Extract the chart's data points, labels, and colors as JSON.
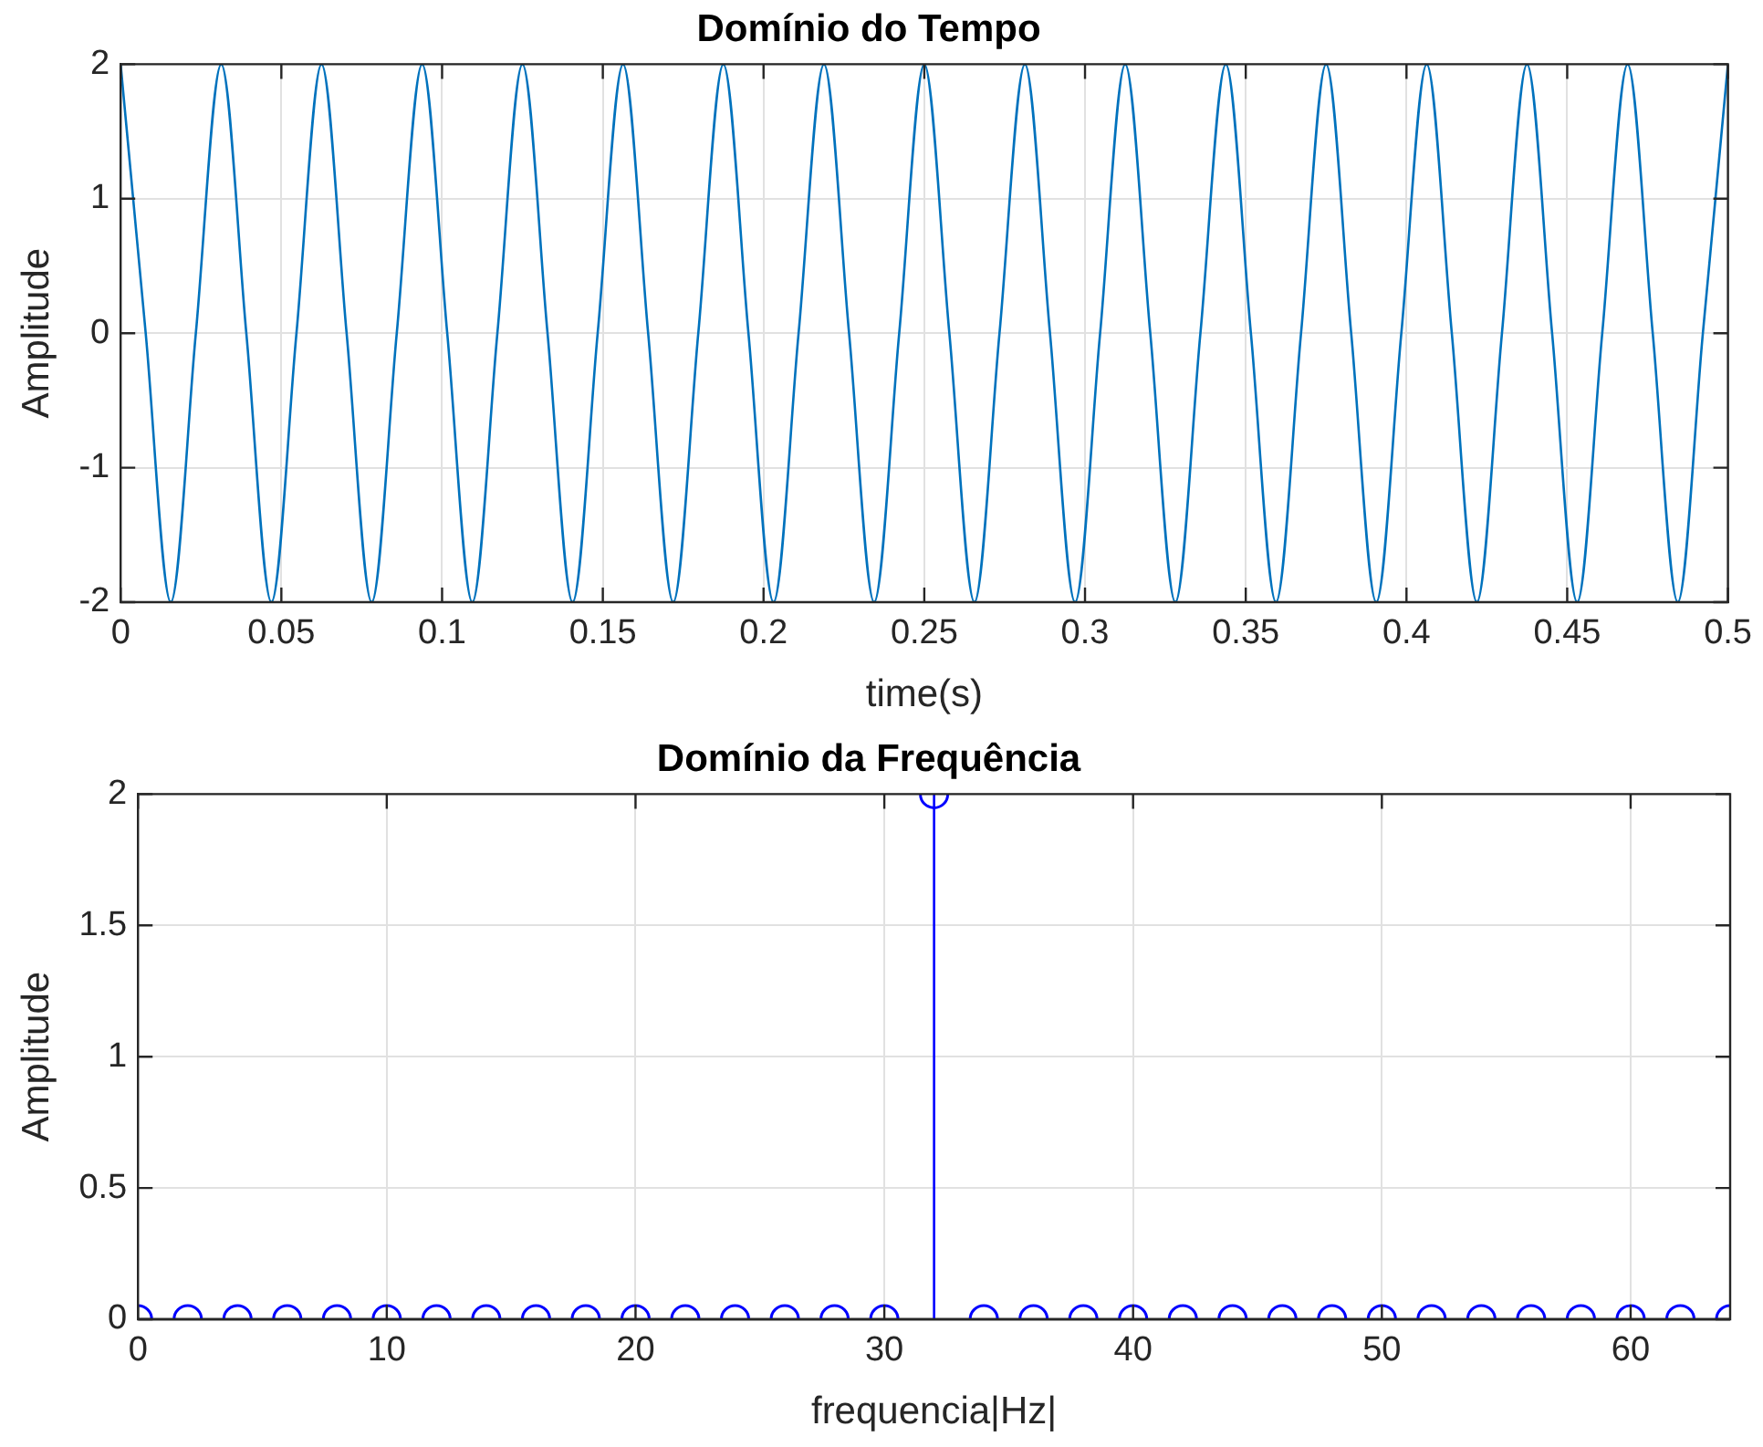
{
  "chart_data": [
    {
      "type": "line",
      "title": "Domínio do Tempo",
      "xlabel": "time(s)",
      "ylabel": "Amplitude",
      "xlim": [
        0,
        0.5
      ],
      "xticks": [
        0,
        0.05,
        0.1,
        0.15,
        0.2,
        0.25,
        0.3,
        0.35,
        0.4,
        0.45,
        0.5
      ],
      "ylim": [
        -2,
        2
      ],
      "yticks": [
        -2,
        -1,
        0,
        1,
        2
      ],
      "grid": true,
      "marker": "none",
      "line_style": "solid",
      "x": [
        0,
        0.0078,
        0.0156,
        0.0234,
        0.0313,
        0.0391,
        0.0469,
        0.0547,
        0.0625,
        0.0703,
        0.0781,
        0.0859,
        0.0938,
        0.1016,
        0.1094,
        0.1172,
        0.125,
        0.1328,
        0.1406,
        0.1484,
        0.1563,
        0.1641,
        0.1719,
        0.1797,
        0.1875,
        0.1953,
        0.2031,
        0.2109,
        0.2188,
        0.2266,
        0.2344,
        0.2422,
        0.25,
        0.2578,
        0.2656,
        0.2734,
        0.2813,
        0.2891,
        0.2969,
        0.3047,
        0.3125,
        0.3203,
        0.3281,
        0.3359,
        0.3438,
        0.3516,
        0.3594,
        0.3672,
        0.375,
        0.3828,
        0.3906,
        0.3984,
        0.4063,
        0.4141,
        0.4219,
        0.4297,
        0.4375,
        0.4453,
        0.4531,
        0.4609,
        0.4688,
        0.4766,
        0.4844,
        0.4922,
        0.5
      ],
      "series": [
        {
          "color": "#0072bd",
          "values": [
            2,
            0,
            -2,
            0,
            2,
            0,
            -2,
            0,
            2,
            0,
            -2,
            0,
            2,
            0,
            -2,
            0,
            2,
            0,
            -2,
            0,
            2,
            0,
            -2,
            0,
            2,
            0,
            -2,
            0,
            2,
            0,
            -2,
            0,
            2,
            0,
            -2,
            0,
            2,
            0,
            -2,
            0,
            2,
            0,
            -2,
            0,
            2,
            0,
            -2,
            0,
            2,
            0,
            -2,
            0,
            2,
            0,
            -2,
            0,
            2,
            0,
            -2,
            0,
            2,
            0,
            -2,
            0,
            2
          ]
        }
      ]
    },
    {
      "type": "lollipop",
      "title": "Domínio da Frequência",
      "xlabel": "frequencia|Hz|",
      "ylabel": "Amplitude",
      "xlim": [
        0,
        64
      ],
      "xticks": [
        0,
        10,
        20,
        30,
        40,
        50,
        60
      ],
      "ylim": [
        0,
        2
      ],
      "yticks": [
        0,
        0.5,
        1,
        1.5,
        2
      ],
      "grid": true,
      "marker": "circle",
      "x": [
        0,
        2,
        4,
        6,
        8,
        10,
        12,
        14,
        16,
        18,
        20,
        22,
        24,
        26,
        28,
        30,
        32,
        34,
        36,
        38,
        40,
        42,
        44,
        46,
        48,
        50,
        52,
        54,
        56,
        58,
        60,
        62,
        64
      ],
      "series": [
        {
          "color": "#0000ff",
          "values": [
            0,
            0,
            0,
            0,
            0,
            0,
            0,
            0,
            0,
            0,
            0,
            0,
            0,
            0,
            0,
            0,
            2,
            0,
            0,
            0,
            0,
            0,
            0,
            0,
            0,
            0,
            0,
            0,
            0,
            0,
            0,
            0,
            0
          ]
        }
      ]
    }
  ]
}
